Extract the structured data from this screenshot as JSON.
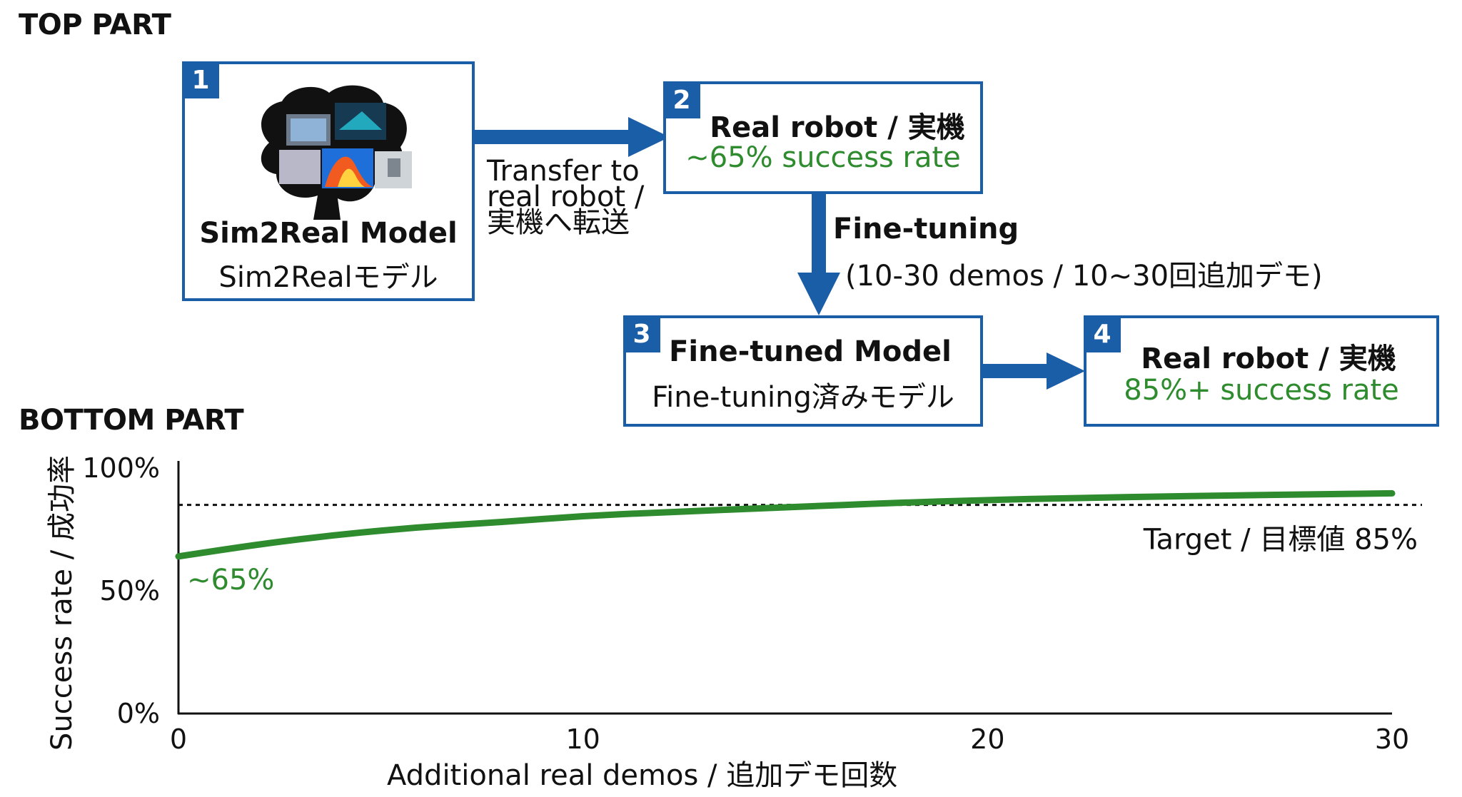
{
  "top": {
    "section_title": "TOP PART",
    "box1": {
      "number": "1",
      "title": "Sim2Real Model",
      "subtitle": "Sim2Realモデル"
    },
    "transfer_note": {
      "line1": "Transfer to",
      "line2": "real robot /",
      "line3": "実機へ転送"
    },
    "box2": {
      "number": "2",
      "title": "Real robot / 実機",
      "rate": "~65% success rate"
    },
    "finetune_note": {
      "title": "Fine-tuning",
      "detail": "(10-30 demos / 10~30回追加デモ)"
    },
    "box3": {
      "number": "3",
      "title": "Fine-tuned Model",
      "subtitle": "Fine-tuning済みモデル"
    },
    "box4": {
      "number": "4",
      "title": "Real robot / 実機",
      "rate": "85%+ success rate"
    }
  },
  "bottom": {
    "section_title": "BOTTOM PART"
  },
  "chart_data": {
    "type": "line",
    "ylabel": "Success rate / 成功率",
    "xlabel": "Additional real demos / 追加デモ回数",
    "xlim": [
      0,
      30
    ],
    "ylim": [
      0,
      100
    ],
    "x_ticks": [
      "0",
      "10",
      "20",
      "30"
    ],
    "y_ticks": [
      "0%",
      "50%",
      "100%"
    ],
    "series": [
      {
        "x": [
          0,
          2,
          4,
          6,
          8,
          10,
          12,
          15,
          18,
          20,
          22,
          25,
          28,
          30
        ],
        "y": [
          64,
          69,
          73,
          76,
          78,
          80.5,
          82,
          84,
          86,
          87,
          87.8,
          88.6,
          89.3,
          89.7
        ]
      }
    ],
    "series_color": "#2e8b2e",
    "start_label": "~65%",
    "target": {
      "value": 85,
      "label": "Target / 目標値 85%"
    },
    "grid": false
  }
}
